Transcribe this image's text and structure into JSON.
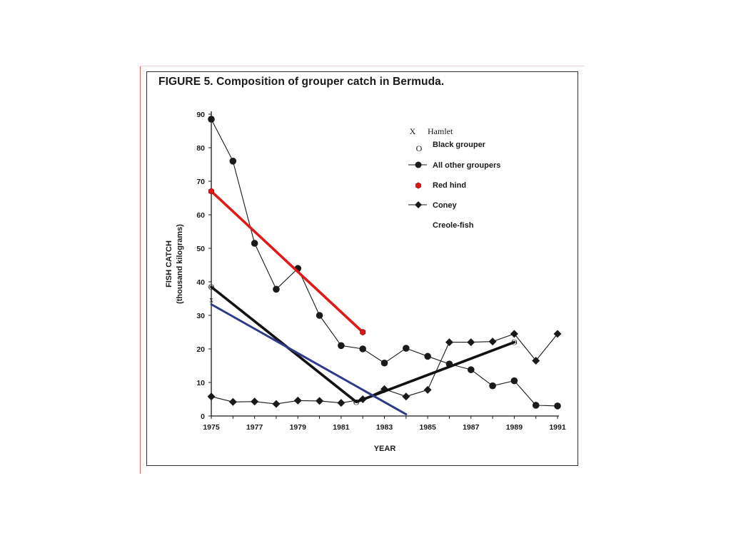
{
  "figure": {
    "title": "FIGURE 5. Composition of grouper catch in Bermuda."
  },
  "chart_data": {
    "type": "line",
    "title": "FIGURE 5. Composition of grouper catch in Bermuda.",
    "xlabel": "YEAR",
    "ylabel_line1": "FISH CATCH",
    "ylabel_line2": "(thousand kilograms)",
    "xlim": [
      1975,
      1991
    ],
    "ylim": [
      0,
      90
    ],
    "x_ticks": [
      1975,
      1977,
      1979,
      1981,
      1983,
      1985,
      1987,
      1989,
      1991
    ],
    "x_tick_labels": [
      "1975",
      "1977",
      "1979",
      "1981",
      "1983",
      "1985",
      "1987",
      "1989",
      "1991"
    ],
    "y_ticks": [
      0,
      10,
      20,
      30,
      40,
      50,
      60,
      70,
      80,
      90
    ],
    "y_tick_labels": [
      "0",
      "10",
      "20",
      "30",
      "40",
      "50",
      "60",
      "70",
      "80",
      "90"
    ],
    "grid": false,
    "legend": {
      "position": "top-right",
      "entries": [
        {
          "key": "hamlet",
          "marker": "X",
          "label": "Hamlet"
        },
        {
          "key": "black",
          "marker": "O",
          "label": "Black grouper"
        },
        {
          "key": "allother",
          "marker": "circle-line",
          "label": "All other groupers"
        },
        {
          "key": "redhind",
          "marker": "red-hexagon",
          "label": "Red hind"
        },
        {
          "key": "coney",
          "marker": "diamond-line",
          "label": "Coney"
        },
        {
          "key": "creole",
          "marker": "none",
          "label": "Creole-fish"
        }
      ]
    },
    "series": [
      {
        "name": "All other groupers",
        "marker": "circle",
        "color": "#1a1a1a",
        "x": [
          1975,
          1976,
          1977,
          1978,
          1979,
          1980,
          1981,
          1982,
          1983,
          1984,
          1985,
          1986,
          1987,
          1988,
          1989,
          1990,
          1991
        ],
        "y": [
          88.5,
          76,
          51.5,
          37.8,
          44,
          30,
          21,
          20,
          15.8,
          20.2,
          17.8,
          15.5,
          13.8,
          9,
          10.5,
          3.2,
          3
        ]
      },
      {
        "name": "Coney",
        "marker": "diamond",
        "color": "#1a1a1a",
        "x": [
          1975,
          1976,
          1977,
          1978,
          1979,
          1980,
          1981,
          1982,
          1983,
          1984,
          1985,
          1986,
          1987,
          1988,
          1989,
          1990,
          1991
        ],
        "y": [
          5.8,
          4.2,
          4.3,
          3.6,
          4.6,
          4.5,
          3.9,
          5,
          8,
          5.8,
          7.8,
          22,
          22,
          22.2,
          24.5,
          16.5,
          24.5
        ]
      },
      {
        "name": "Red hind",
        "marker": "red-hexagon",
        "color": "#e01818",
        "x": [
          1975,
          1982
        ],
        "y": [
          67,
          25
        ]
      },
      {
        "name": "Black grouper",
        "marker": "O",
        "color": "#111111",
        "x": [
          1975,
          1981.7,
          1989
        ],
        "y": [
          38.5,
          4.2,
          22
        ]
      },
      {
        "name": "Hamlet",
        "marker": "X",
        "color": "#2e3a8c",
        "x": [
          1975,
          1984
        ],
        "y": [
          33.3,
          0.5
        ]
      }
    ]
  }
}
